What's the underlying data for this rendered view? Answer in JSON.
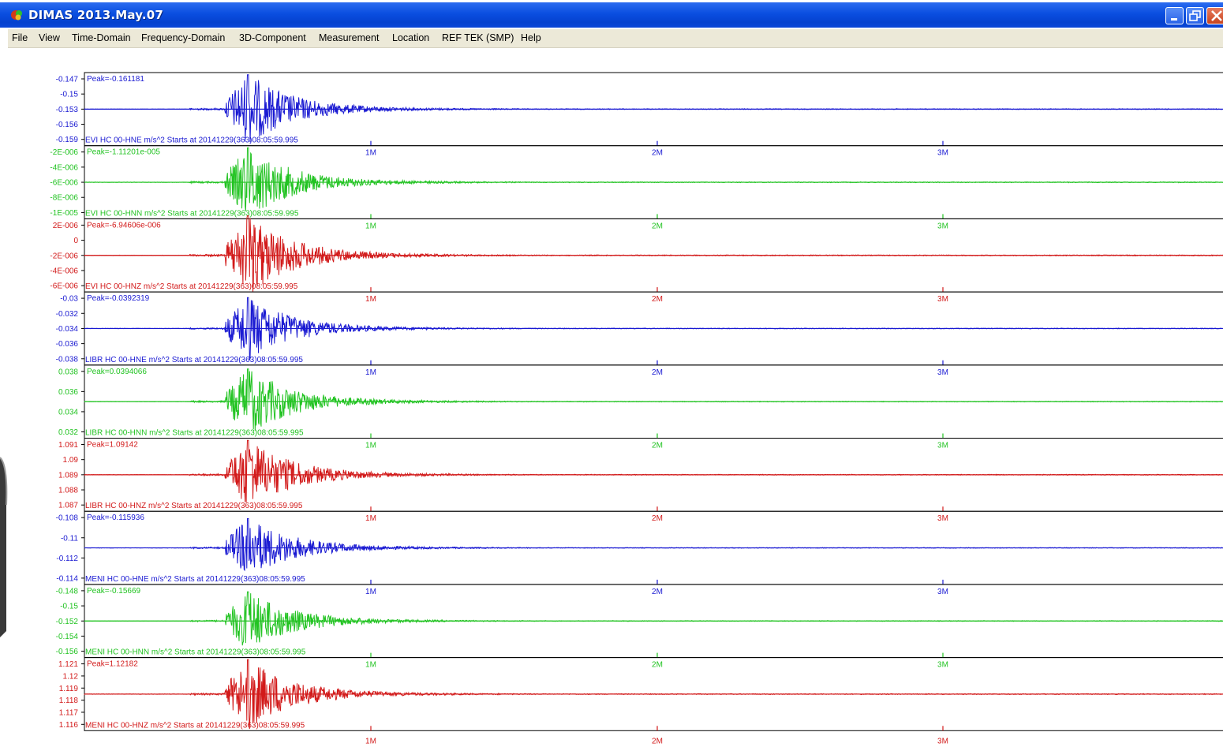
{
  "window": {
    "title": "DIMAS 2013.May.07",
    "icon": "dimas-app-icon",
    "controls": [
      "minimize-icon",
      "maximize-icon",
      "close-icon"
    ]
  },
  "menu": [
    "File",
    "View",
    "Time-Domain",
    "Frequency-Domain",
    "3D-Component",
    "Measurement",
    "Location",
    "REF TEK (SMP)",
    "Help"
  ],
  "colors": {
    "HNE": "#1a1ad2",
    "HNN": "#22c322",
    "HNZ": "#d21a1a"
  },
  "time_ticks": [
    "1M",
    "2M",
    "3M"
  ],
  "traces": [
    {
      "component": "HNE",
      "peak": "Peak=-0.161181",
      "label": "EVI HC 00-HNE  m/s^2  Starts at  20141229(363)08:05:59.995",
      "yticks": [
        "-0.147",
        "-0.15",
        "-0.153",
        "-0.156",
        "-0.159"
      ],
      "amp": 1.0
    },
    {
      "component": "HNN",
      "peak": "Peak=-1.11201e-005",
      "label": "EVI HC 00-HNN  m/s^2  Starts at  20141229(363)08:05:59.995",
      "yticks": [
        "-2E-006",
        "-4E-006",
        "-6E-006",
        "-8E-006",
        "-1E-005"
      ],
      "amp": 1.0
    },
    {
      "component": "HNZ",
      "peak": "Peak=-6.94606e-006",
      "label": "EVI HC 00-HNZ  m/s^2  Starts at  20141229(363)08:05:59.995",
      "yticks": [
        "2E-006",
        "0",
        "-2E-006",
        "-4E-006",
        "-6E-006"
      ],
      "amp": 1.15
    },
    {
      "component": "HNE",
      "peak": "Peak=-0.0392319",
      "label": "LIBR HC 00-HNE  m/s^2  Starts at  20141229(363)08:05:59.995",
      "yticks": [
        "-0.03",
        "-0.032",
        "-0.034",
        "-0.036",
        "-0.038"
      ],
      "amp": 0.9
    },
    {
      "component": "HNN",
      "peak": "Peak=0.0394066",
      "label": "LIBR HC 00-HNN  m/s^2  Starts at  20141229(363)08:05:59.995",
      "yticks": [
        "0.038",
        "0.036",
        "0.034",
        "0.032"
      ],
      "amp": 0.95
    },
    {
      "component": "HNZ",
      "peak": "Peak=1.09142",
      "label": "LIBR HC 00-HNZ  m/s^2  Starts at  20141229(363)08:05:59.995",
      "yticks": [
        "1.091",
        "1.09",
        "1.089",
        "1.088",
        "1.087"
      ],
      "amp": 1.0
    },
    {
      "component": "HNE",
      "peak": "Peak=-0.115936",
      "label": "MENI HC 00-HNE  m/s^2  Starts at  20141229(363)08:05:59.995",
      "yticks": [
        "-0.108",
        "-0.11",
        "-0.112",
        "-0.114"
      ],
      "amp": 0.85
    },
    {
      "component": "HNN",
      "peak": "Peak=-0.15669",
      "label": "MENI HC 00-HNN  m/s^2  Starts at  20141229(363)08:05:59.995",
      "yticks": [
        "-0.148",
        "-0.15",
        "-0.152",
        "-0.154",
        "-0.156"
      ],
      "amp": 0.85
    },
    {
      "component": "HNZ",
      "peak": "Peak=1.12182",
      "label": "MENI HC 00-HNZ  m/s^2  Starts at  20141229(363)08:05:59.995",
      "yticks": [
        "1.121",
        "1.12",
        "1.119",
        "1.118",
        "1.117",
        "1.116"
      ],
      "amp": 1.0
    }
  ]
}
